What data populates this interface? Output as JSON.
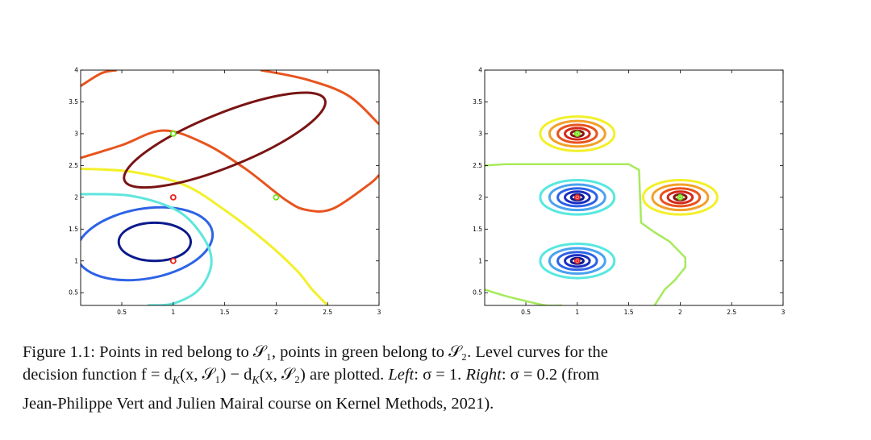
{
  "chart_data": [
    {
      "type": "contour",
      "panel": "Left",
      "xlim": [
        0.1,
        3
      ],
      "ylim": [
        0.3,
        4
      ],
      "xticks": [
        0.5,
        1,
        1.5,
        2,
        2.5,
        3
      ],
      "yticks": [
        0.5,
        1,
        1.5,
        2,
        2.5,
        3,
        3.5,
        4
      ],
      "xtick_labels": [
        "0.5",
        "1",
        "1.5",
        "2",
        "2.5",
        "3"
      ],
      "ytick_labels": [
        "0.5",
        "1",
        "1.5",
        "2",
        "2.5",
        "3",
        "3.5",
        "4"
      ],
      "grid": false,
      "points": [
        {
          "set": "S1",
          "color": "#e8231a",
          "x": 1,
          "y": 1
        },
        {
          "set": "S1",
          "color": "#e8231a",
          "x": 1,
          "y": 2
        },
        {
          "set": "S2",
          "color": "#6ee619",
          "x": 1,
          "y": 3
        },
        {
          "set": "S2",
          "color": "#6ee619",
          "x": 2,
          "y": 2
        }
      ],
      "level_curves": [
        {
          "color": "#0b1a8c",
          "kind": "ellipse",
          "cx": 0.82,
          "cy": 1.3,
          "rx": 0.35,
          "ry": 0.3,
          "rot": 0
        },
        {
          "color": "#2e63e6",
          "kind": "ellipse",
          "cx": 0.72,
          "cy": 1.27,
          "rx": 0.67,
          "ry": 0.55,
          "rot": -10
        },
        {
          "color": "#5ee6dd",
          "kind": "open",
          "points": [
            [
              0.1,
              2.05
            ],
            [
              0.6,
              2.02
            ],
            [
              1.05,
              1.78
            ],
            [
              1.3,
              1.35
            ],
            [
              1.37,
              0.95
            ],
            [
              1.25,
              0.55
            ],
            [
              1.0,
              0.33
            ],
            [
              0.75,
              0.3
            ]
          ]
        },
        {
          "color": "#f3f02a",
          "kind": "open",
          "points": [
            [
              0.1,
              2.45
            ],
            [
              0.6,
              2.4
            ],
            [
              1.1,
              2.2
            ],
            [
              1.5,
              1.8
            ],
            [
              1.9,
              1.3
            ],
            [
              2.2,
              0.85
            ],
            [
              2.35,
              0.55
            ],
            [
              2.5,
              0.3
            ]
          ]
        },
        {
          "color": "#e8541e",
          "kind": "open",
          "points": [
            [
              0.1,
              2.62
            ],
            [
              0.5,
              2.82
            ],
            [
              0.9,
              3.05
            ],
            [
              1.3,
              2.85
            ],
            [
              1.7,
              2.45
            ],
            [
              2.1,
              1.95
            ],
            [
              2.3,
              1.8
            ],
            [
              2.55,
              1.82
            ],
            [
              2.9,
              2.2
            ],
            [
              3.0,
              2.35
            ]
          ]
        },
        {
          "color": "#e8541e",
          "kind": "open",
          "points": [
            [
              0.1,
              3.75
            ],
            [
              0.3,
              3.95
            ],
            [
              0.45,
              4.0
            ]
          ]
        },
        {
          "color": "#e8541e",
          "kind": "open",
          "points": [
            [
              1.85,
              4.0
            ],
            [
              2.3,
              3.85
            ],
            [
              2.7,
              3.6
            ],
            [
              3.0,
              3.15
            ]
          ]
        },
        {
          "color": "#7a1414",
          "kind": "ellipse",
          "cx": 1.5,
          "cy": 2.9,
          "rx": 1.05,
          "ry": 0.42,
          "rot": -22
        }
      ]
    },
    {
      "type": "contour",
      "panel": "Right",
      "xlim": [
        0.1,
        3
      ],
      "ylim": [
        0.3,
        4
      ],
      "xticks": [
        0.5,
        1,
        1.5,
        2,
        2.5,
        3
      ],
      "yticks": [
        0.5,
        1,
        1.5,
        2,
        2.5,
        3,
        3.5,
        4
      ],
      "xtick_labels": [
        "0.5",
        "1",
        "1.5",
        "2",
        "2.5",
        "3"
      ],
      "ytick_labels": [
        "0.5",
        "1",
        "1.5",
        "2",
        "2.5",
        "3",
        "3.5",
        "4"
      ],
      "grid": false,
      "points": [
        {
          "set": "S1",
          "color": "#e8231a",
          "x": 1,
          "y": 1
        },
        {
          "set": "S1",
          "color": "#e8231a",
          "x": 1,
          "y": 2
        },
        {
          "set": "S2",
          "color": "#6ee619",
          "x": 1,
          "y": 3
        },
        {
          "set": "S2",
          "color": "#6ee619",
          "x": 2,
          "y": 2
        }
      ],
      "ring_groups": [
        {
          "cx": 1,
          "cy": 1,
          "colors": [
            "#56e8e0",
            "#4aa3f0",
            "#2e63e6",
            "#1a2ec2",
            "#0b1a8c"
          ]
        },
        {
          "cx": 1,
          "cy": 2,
          "colors": [
            "#56e8e0",
            "#4aa3f0",
            "#2e63e6",
            "#1a2ec2",
            "#0b1a8c"
          ]
        },
        {
          "cx": 1,
          "cy": 3,
          "colors": [
            "#f3f02a",
            "#f2a02a",
            "#e8541e",
            "#d42a1a",
            "#8a1414"
          ]
        },
        {
          "cx": 2,
          "cy": 2,
          "colors": [
            "#f3f02a",
            "#f2a02a",
            "#e8541e",
            "#d42a1a",
            "#8a1414"
          ]
        }
      ],
      "ring_radii_x": [
        0.36,
        0.27,
        0.19,
        0.12,
        0.06
      ],
      "ring_radii_y": [
        0.27,
        0.2,
        0.14,
        0.09,
        0.045
      ],
      "zero_level_color": "#a6ea5c",
      "zero_level": [
        [
          0.1,
          0.55
        ],
        [
          0.3,
          0.45
        ],
        [
          0.55,
          0.35
        ],
        [
          0.7,
          0.3
        ],
        [
          0.85,
          0.3
        ]
      ],
      "zero_level_2": [
        [
          0.1,
          2.5
        ],
        [
          0.3,
          2.52
        ],
        [
          0.9,
          2.52
        ],
        [
          1.5,
          2.52
        ],
        [
          1.6,
          2.43
        ],
        [
          1.62,
          1.6
        ],
        [
          1.75,
          1.45
        ],
        [
          1.9,
          1.3
        ],
        [
          2.05,
          1.05
        ],
        [
          2.05,
          0.9
        ],
        [
          1.95,
          0.7
        ],
        [
          1.85,
          0.55
        ],
        [
          1.75,
          0.3
        ]
      ]
    }
  ],
  "caption": {
    "line1": "Figure 1.1: Points in red belong to 𝒮₁, points in green belong to 𝒮₂. Level curves for the",
    "line2a": "decision function f = d",
    "line2b": "K",
    "line2c": "(x, 𝒮₁) − d",
    "line2d": "K",
    "line2e": "(x, 𝒮₂) are plotted. ",
    "line2f": "Left",
    "line2g": ": σ = 1. ",
    "line2h": "Right",
    "line2i": ": σ = 0.2 (from",
    "line3": "Jean-Philippe Vert and Julien Mairal course on Kernel Methods, 2021)."
  }
}
